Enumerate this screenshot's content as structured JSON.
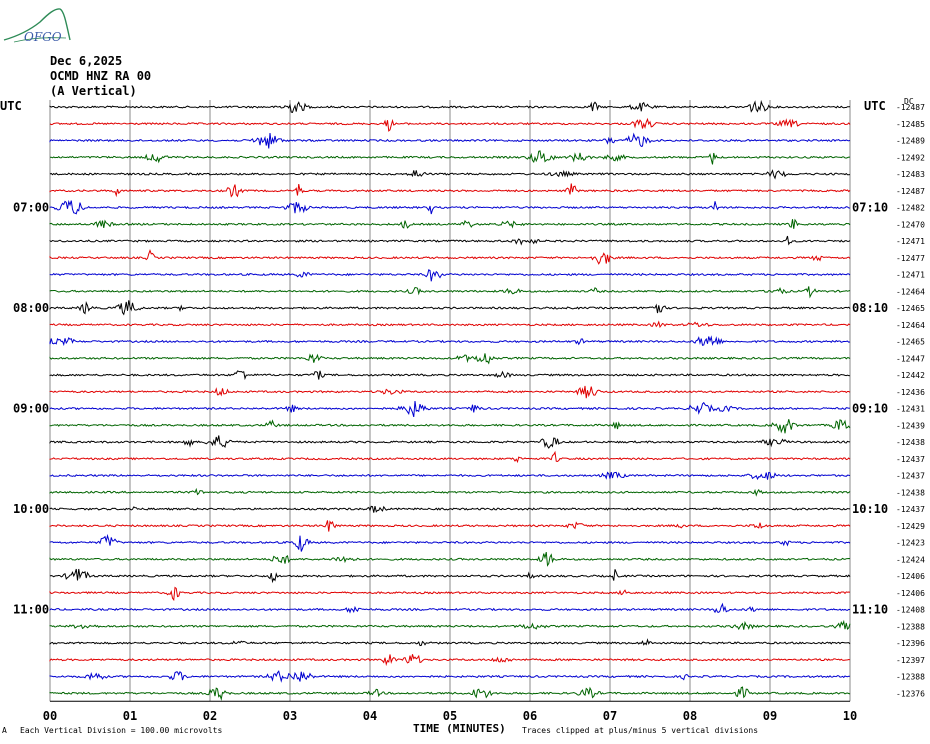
{
  "logo": {
    "text": "OFGO"
  },
  "header": {
    "date": "Dec 6,2025",
    "station": "OCMD HNZ RA 00",
    "component": "(A Vertical)",
    "utc_left": "UTC",
    "utc_right": "UTC",
    "dc": "DC"
  },
  "footer": {
    "scale_note": "Each Vertical Division = 100.00 microvolts",
    "clip_note": "Traces clipped at plus/minus 5 vertical divisions",
    "corner": "A"
  },
  "colors": {
    "trace_cycle": [
      "#000000",
      "#e00000",
      "#0000d0",
      "#006400"
    ],
    "grid": "#888888"
  },
  "chart_data": {
    "type": "line",
    "xlabel": "TIME (MINUTES)",
    "x_ticks": [
      "00",
      "01",
      "02",
      "03",
      "04",
      "05",
      "06",
      "07",
      "08",
      "09",
      "10"
    ],
    "xlim": [
      0,
      10
    ],
    "left_time_labels": [
      {
        "row": 6,
        "label": "07:00"
      },
      {
        "row": 12,
        "label": "08:00"
      },
      {
        "row": 18,
        "label": "09:00"
      },
      {
        "row": 24,
        "label": "10:00"
      },
      {
        "row": 30,
        "label": "11:00"
      }
    ],
    "right_time_labels": [
      {
        "row": 6,
        "label": "07:10"
      },
      {
        "row": 12,
        "label": "08:10"
      },
      {
        "row": 18,
        "label": "09:10"
      },
      {
        "row": 24,
        "label": "10:10"
      },
      {
        "row": 30,
        "label": "11:10"
      }
    ],
    "dc_offsets": [
      "-12487",
      "-12485",
      "-12489",
      "-12492",
      "-12483",
      "-12487",
      "-12482",
      "-12470",
      "-12471",
      "-12477",
      "-12471",
      "-12464",
      "-12465",
      "-12464",
      "-12465",
      "-12447",
      "-12442",
      "-12436",
      "-12431",
      "-12439",
      "-12438",
      "-12437",
      "-12437",
      "-12438",
      "-12437",
      "-12429",
      "-12423",
      "-12424",
      "-12406",
      "-12406",
      "-12408",
      "-12388",
      "-12396",
      "-12397",
      "-12388",
      "-12376"
    ]
  }
}
